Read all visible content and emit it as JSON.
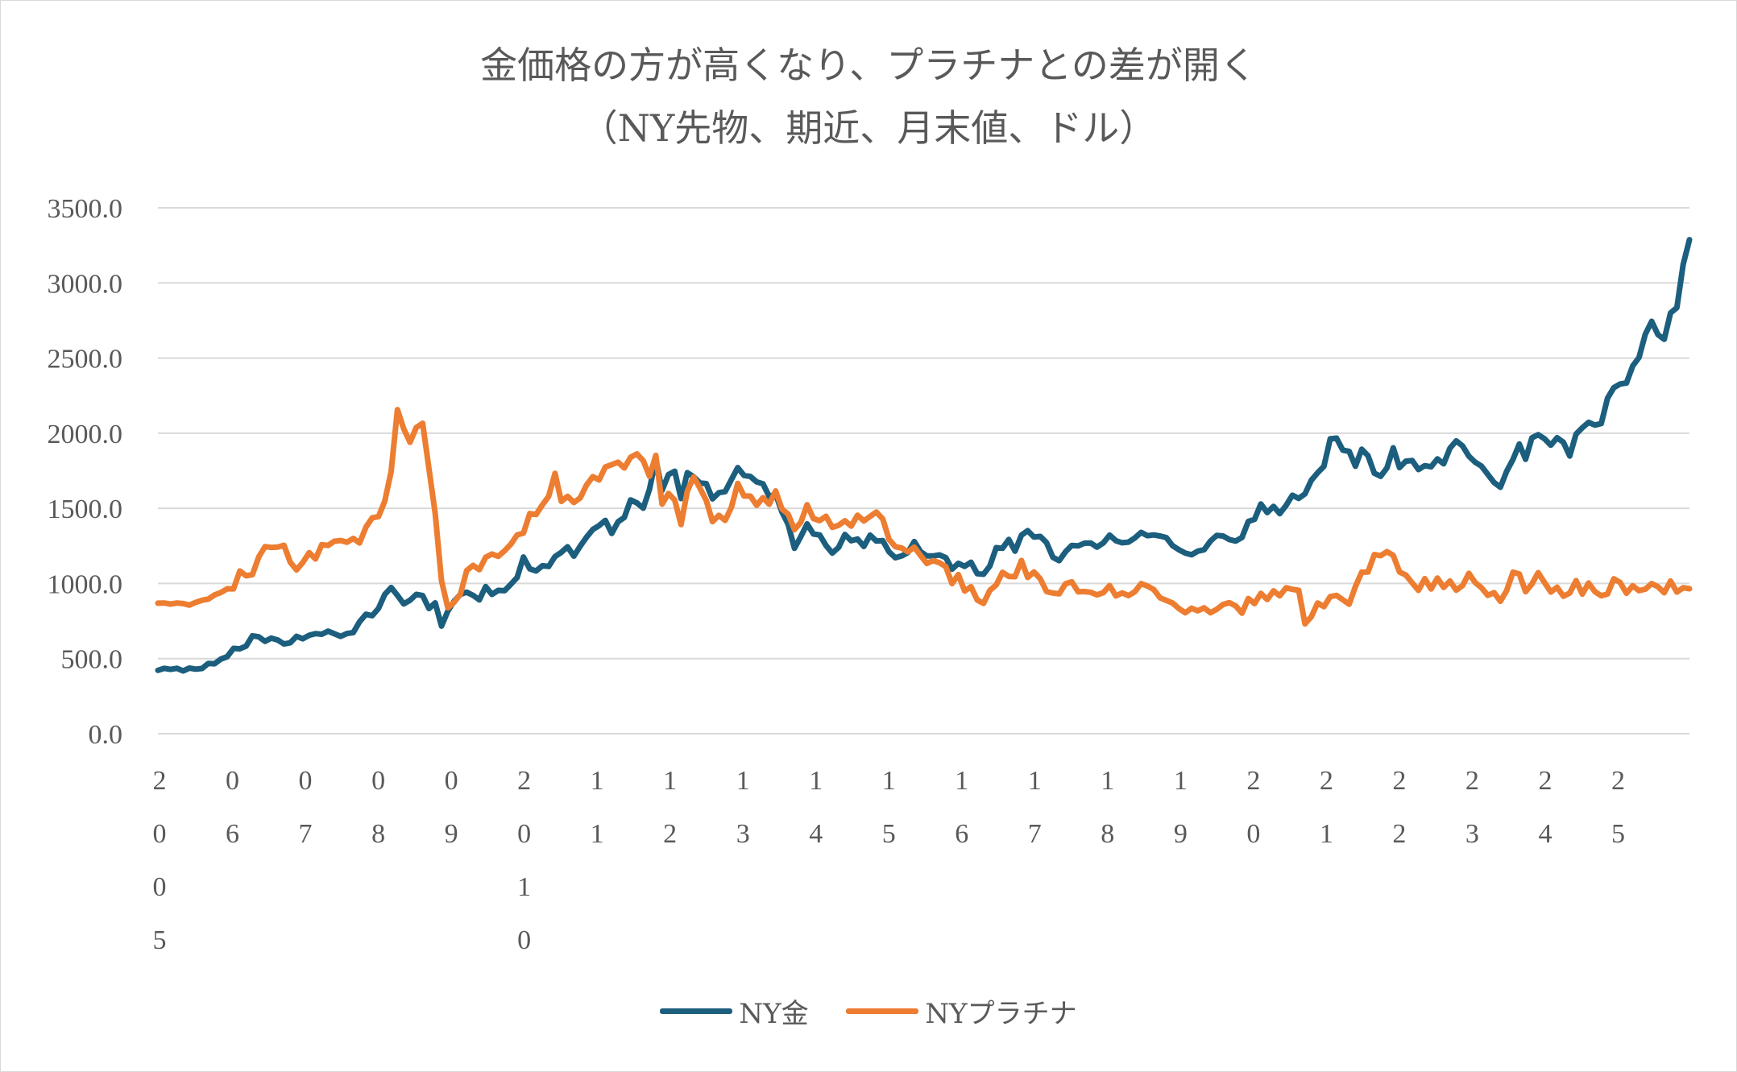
{
  "chart_data": {
    "type": "line",
    "title": "金価格の方が高くなり、プラチナとの差が開く",
    "subtitle": "（NY先物、期近、月末値、ドル）",
    "xlabel": "",
    "ylabel": "",
    "ylim": [
      0,
      3500
    ],
    "yticks": [
      "0.0",
      "500.0",
      "1000.0",
      "1500.0",
      "2000.0",
      "2500.0",
      "3000.0",
      "3500.0"
    ],
    "x_tick_labels": [
      "2005",
      "06",
      "07",
      "08",
      "09",
      "2010",
      "11",
      "12",
      "13",
      "14",
      "15",
      "16",
      "17",
      "18",
      "19",
      "20",
      "21",
      "22",
      "23",
      "24",
      "25"
    ],
    "legend_position": "bottom",
    "grid": true,
    "series": [
      {
        "name": "NY金",
        "color": "#1c5e7e",
        "values": [
          422,
          435,
          428,
          435,
          418,
          437,
          430,
          434,
          468,
          466,
          497,
          513,
          568,
          565,
          583,
          652,
          645,
          615,
          636,
          624,
          597,
          605,
          648,
          632,
          655,
          666,
          662,
          683,
          665,
          648,
          667,
          673,
          745,
          795,
          785,
          834,
          927,
          973,
          921,
          864,
          888,
          927,
          920,
          833,
          871,
          716,
          817,
          882,
          927,
          942,
          921,
          891,
          979,
          927,
          954,
          952,
          995,
          1040,
          1176,
          1097,
          1083,
          1118,
          1113,
          1179,
          1207,
          1244,
          1182,
          1248,
          1308,
          1359,
          1385,
          1420,
          1333,
          1410,
          1439,
          1556,
          1536,
          1501,
          1628,
          1829,
          1620,
          1725,
          1747,
          1565,
          1737,
          1710,
          1669,
          1664,
          1563,
          1604,
          1611,
          1692,
          1771,
          1719,
          1712,
          1676,
          1663,
          1578,
          1596,
          1476,
          1393,
          1234,
          1312,
          1396,
          1329,
          1323,
          1253,
          1202,
          1240,
          1326,
          1284,
          1296,
          1246,
          1322,
          1282,
          1285,
          1210,
          1171,
          1183,
          1206,
          1279,
          1212,
          1183,
          1183,
          1190,
          1172,
          1095,
          1134,
          1114,
          1141,
          1065,
          1061,
          1116,
          1238,
          1234,
          1293,
          1215,
          1321,
          1351,
          1309,
          1313,
          1272,
          1174,
          1152,
          1211,
          1253,
          1250,
          1268,
          1269,
          1242,
          1270,
          1322,
          1284,
          1271,
          1275,
          1303,
          1340,
          1318,
          1323,
          1316,
          1305,
          1251,
          1224,
          1202,
          1191,
          1215,
          1224,
          1282,
          1320,
          1316,
          1292,
          1282,
          1306,
          1413,
          1427,
          1529,
          1472,
          1513,
          1465,
          1519,
          1587,
          1566,
          1596,
          1687,
          1736,
          1780,
          1962,
          1967,
          1887,
          1879,
          1780,
          1893,
          1850,
          1734,
          1713,
          1769,
          1903,
          1771,
          1814,
          1818,
          1758,
          1784,
          1776,
          1829,
          1796,
          1900,
          1949,
          1915,
          1847,
          1807,
          1781,
          1726,
          1672,
          1640,
          1746,
          1826,
          1928,
          1826,
          1969,
          1990,
          1963,
          1920,
          1970,
          1940,
          1848,
          1994,
          2036,
          2072,
          2054,
          2064,
          2233,
          2303,
          2327,
          2334,
          2448,
          2504,
          2659,
          2744,
          2656,
          2625,
          2800,
          2836,
          3123,
          3288
        ]
      },
      {
        "name": "NYプラチナ",
        "color": "#ed7d31",
        "values": [
          869,
          870,
          863,
          870,
          866,
          856,
          874,
          888,
          896,
          924,
          940,
          965,
          964,
          1083,
          1051,
          1059,
          1177,
          1245,
          1240,
          1242,
          1254,
          1141,
          1090,
          1140,
          1205,
          1163,
          1258,
          1253,
          1281,
          1286,
          1274,
          1300,
          1269,
          1375,
          1437,
          1445,
          1548,
          1745,
          2157,
          2030,
          1939,
          2038,
          2066,
          1765,
          1465,
          1018,
          838,
          875,
          930,
          1086,
          1120,
          1092,
          1174,
          1196,
          1180,
          1217,
          1261,
          1323,
          1335,
          1465,
          1459,
          1523,
          1580,
          1733,
          1546,
          1580,
          1539,
          1569,
          1655,
          1711,
          1689,
          1775,
          1791,
          1807,
          1769,
          1840,
          1862,
          1817,
          1713,
          1852,
          1528,
          1599,
          1555,
          1392,
          1614,
          1709,
          1634,
          1552,
          1412,
          1453,
          1420,
          1508,
          1666,
          1582,
          1581,
          1520,
          1571,
          1527,
          1616,
          1496,
          1461,
          1358,
          1407,
          1524,
          1432,
          1418,
          1447,
          1373,
          1387,
          1417,
          1382,
          1454,
          1416,
          1446,
          1475,
          1429,
          1293,
          1245,
          1236,
          1210,
          1242,
          1186,
          1133,
          1152,
          1138,
          1112,
          999,
          1059,
          950,
          978,
          890,
          867,
          954,
          990,
          1074,
          1047,
          1045,
          1153,
          1040,
          1077,
          1031,
          946,
          936,
          931,
          998,
          1011,
          945,
          946,
          941,
          924,
          939,
          986,
          917,
          937,
          919,
          945,
          999,
          983,
          960,
          904,
          887,
          870,
          833,
          805,
          835,
          818,
          838,
          805,
          828,
          860,
          872,
          851,
          802,
          900,
          866,
          934,
          893,
          951,
          918,
          971,
          961,
          954,
          731,
          778,
          870,
          846,
          912,
          921,
          892,
          862,
          980,
          1075,
          1076,
          1192,
          1185,
          1212,
          1187,
          1076,
          1056,
          1004,
          954,
          1032,
          963,
          1036,
          974,
          1016,
          955,
          986,
          1067,
          1006,
          972,
          921,
          939,
          881,
          953,
          1075,
          1063,
          945,
          996,
          1072,
          1006,
          943,
          975,
          915,
          936,
          1019,
          929,
          1003,
          945,
          918,
          930,
          1031,
          1007,
          935,
          985,
          952,
          962,
          999,
          978,
          938,
          1016,
          943,
          972,
          965
        ]
      }
    ]
  }
}
